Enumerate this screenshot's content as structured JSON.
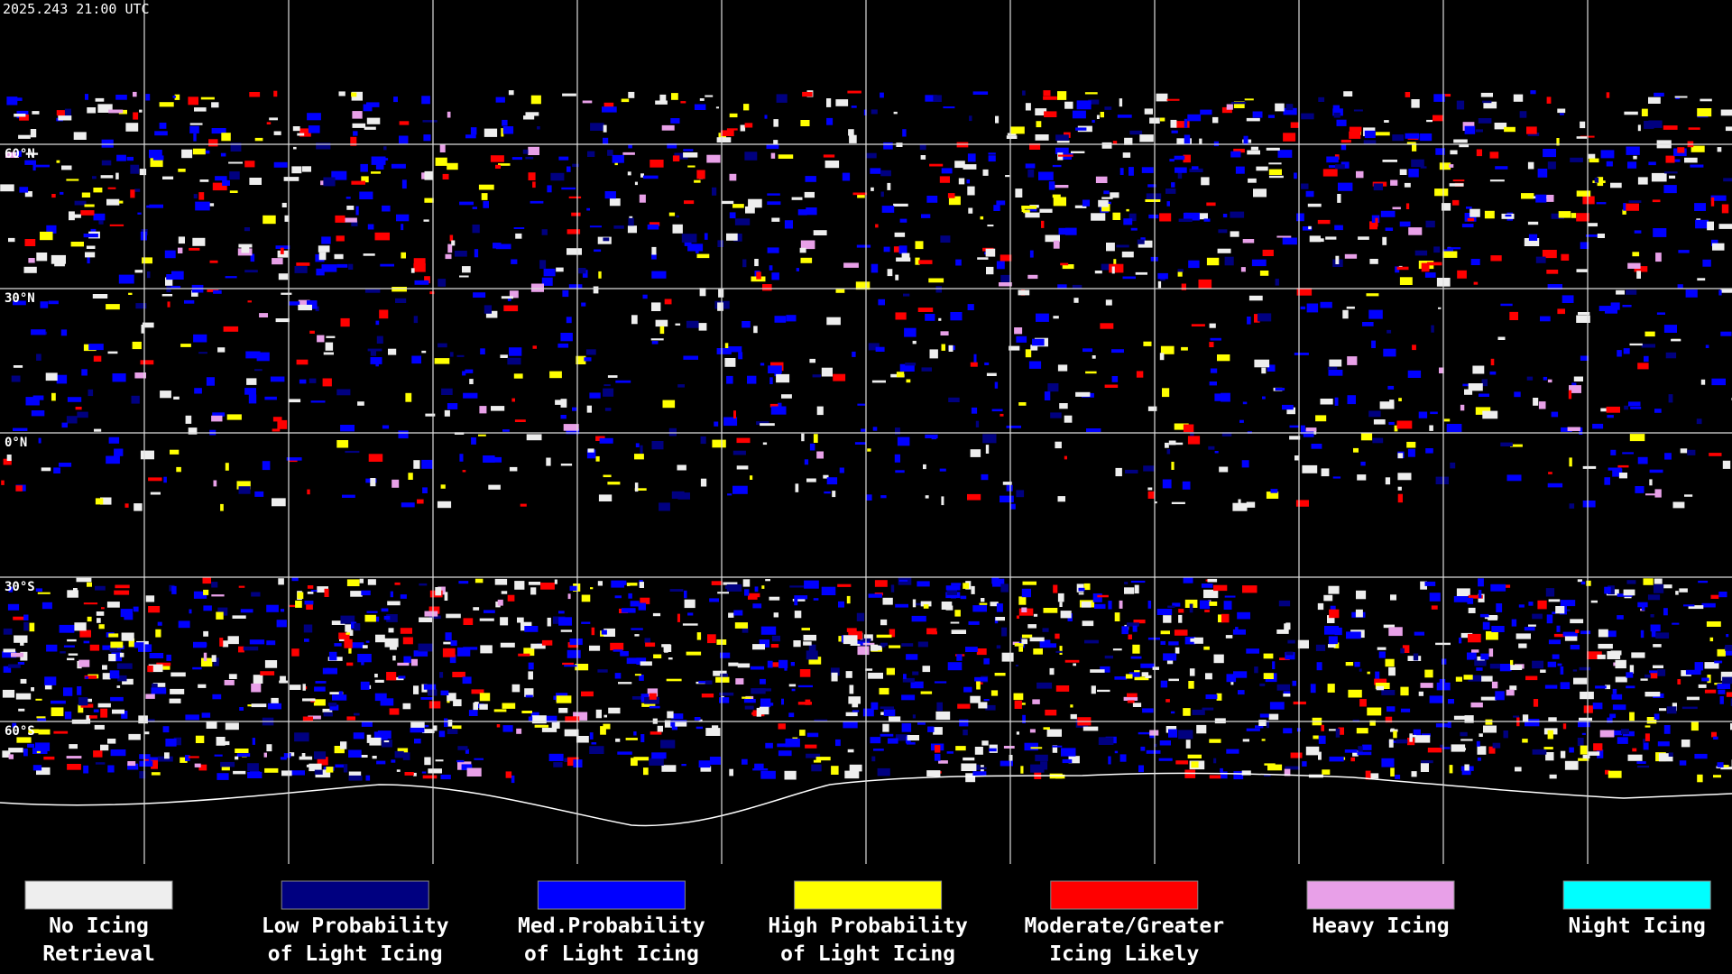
{
  "header": {
    "timestamp": "2025.243 21:00 UTC"
  },
  "map": {
    "latitude_labels": [
      "60°N",
      "30°N",
      "0°N",
      "30°S",
      "60°S"
    ]
  },
  "legend": {
    "items": [
      {
        "lines": [
          "No Icing",
          "Retrieval"
        ],
        "color": "#eeeeee"
      },
      {
        "lines": [
          "Low Probability",
          "of Light Icing"
        ],
        "color": "#000080"
      },
      {
        "lines": [
          "Med.Probability",
          "of Light Icing"
        ],
        "color": "#0000ff"
      },
      {
        "lines": [
          "High Probability",
          "of Light Icing"
        ],
        "color": "#ffff00"
      },
      {
        "lines": [
          "Moderate/Greater",
          "Icing Likely"
        ],
        "color": "#ff0000"
      },
      {
        "lines": [
          "Heavy Icing"
        ],
        "color": "#e8a0e8"
      },
      {
        "lines": [
          "Night Icing"
        ],
        "color": "#00ffff"
      }
    ]
  }
}
